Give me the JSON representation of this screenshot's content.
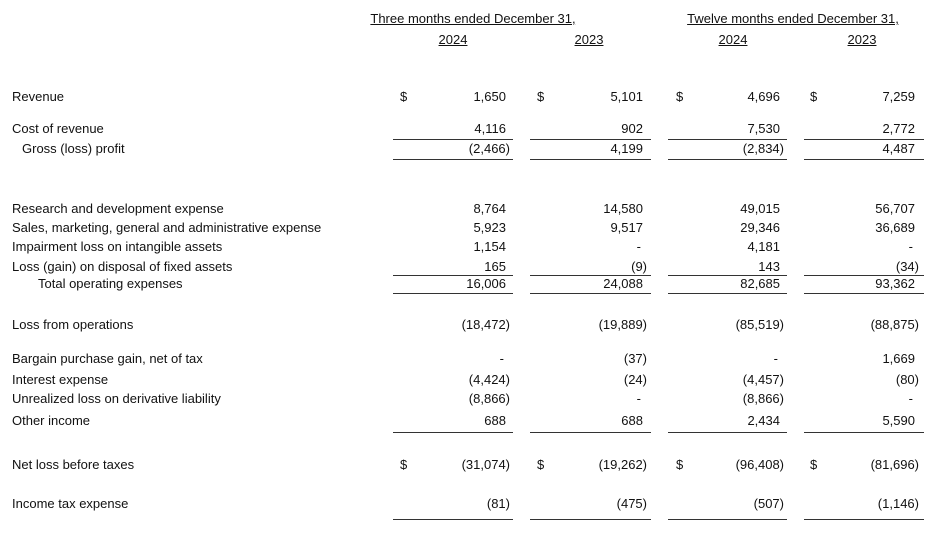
{
  "header": {
    "three_months": "Three months ended December 31,",
    "twelve_months": "Twelve months ended December 31,",
    "years": [
      "2024",
      "2023",
      "2024",
      "2023"
    ]
  },
  "currency_symbol": "$",
  "rows": [
    {
      "label": "Revenue",
      "indent": 0,
      "dollar": true,
      "values": [
        "1,650",
        "5,101",
        "4,696",
        "7,259"
      ]
    },
    {
      "label": "Cost of revenue",
      "indent": 0,
      "dollar": false,
      "values": [
        "4,116",
        "902",
        "7,530",
        "2,772"
      ]
    },
    {
      "label": "Gross (loss) profit",
      "indent": 1,
      "dollar": false,
      "values": [
        "(2,466)",
        "4,199",
        "(2,834)",
        "4,487"
      ]
    },
    {
      "label": "Research and development expense",
      "indent": 0,
      "dollar": false,
      "values": [
        "8,764",
        "14,580",
        "49,015",
        "56,707"
      ]
    },
    {
      "label": "Sales, marketing, general and administrative expense",
      "indent": 0,
      "dollar": false,
      "values": [
        "5,923",
        "9,517",
        "29,346",
        "36,689"
      ]
    },
    {
      "label": "Impairment loss on intangible assets",
      "indent": 0,
      "dollar": false,
      "values": [
        "1,154",
        "-",
        "4,181",
        "-"
      ]
    },
    {
      "label": "Loss (gain) on disposal of fixed assets",
      "indent": 0,
      "dollar": false,
      "values": [
        "165",
        "(9)",
        "143",
        "(34)"
      ]
    },
    {
      "label": "Total operating expenses",
      "indent": 2,
      "dollar": false,
      "values": [
        "16,006",
        "24,088",
        "82,685",
        "93,362"
      ]
    },
    {
      "label": "Loss from operations",
      "indent": 0,
      "dollar": false,
      "values": [
        "(18,472)",
        "(19,889)",
        "(85,519)",
        "(88,875)"
      ]
    },
    {
      "label": "Bargain purchase gain, net of tax",
      "indent": 0,
      "dollar": false,
      "values": [
        "-",
        "(37)",
        "-",
        "1,669"
      ]
    },
    {
      "label": "Interest expense",
      "indent": 0,
      "dollar": false,
      "values": [
        "(4,424)",
        "(24)",
        "(4,457)",
        "(80)"
      ]
    },
    {
      "label": "Unrealized loss on derivative liability",
      "indent": 0,
      "dollar": false,
      "values": [
        "(8,866)",
        "-",
        "(8,866)",
        "-"
      ]
    },
    {
      "label": "Other income",
      "indent": 0,
      "dollar": false,
      "values": [
        "688",
        "688",
        "2,434",
        "5,590"
      ]
    },
    {
      "label": "Net loss before taxes",
      "indent": 0,
      "dollar": true,
      "values": [
        "(31,074)",
        "(19,262)",
        "(96,408)",
        "(81,696)"
      ]
    },
    {
      "label": "Income tax expense",
      "indent": 0,
      "dollar": false,
      "values": [
        "(81)",
        "(475)",
        "(507)",
        "(1,146)"
      ]
    }
  ]
}
